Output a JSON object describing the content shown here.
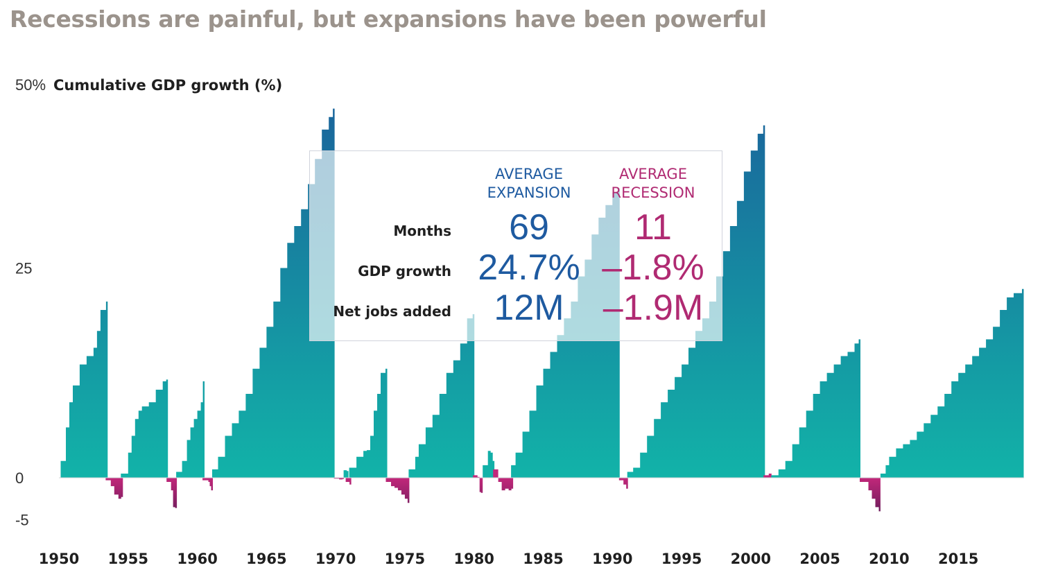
{
  "title": "Recessions are painful, but expansions have been powerful",
  "chart_data": {
    "type": "area",
    "ylabel": "Cumulative GDP growth (%)",
    "ylim": [
      -5,
      50
    ],
    "y_ticks": [
      "50%",
      "25",
      "0",
      "-5"
    ],
    "y_tick_values": [
      50,
      25,
      0,
      -5
    ],
    "x_ticks": [
      "1950",
      "1955",
      "1960",
      "1965",
      "1970",
      "1975",
      "1980",
      "1985",
      "1990",
      "1995",
      "2000",
      "2005",
      "2010",
      "2015"
    ],
    "xlim": [
      1950,
      2019.75
    ],
    "colors": {
      "expansion_top": "#1b5b9a",
      "expansion_bottom": "#12b3a8",
      "recession_top": "#c2277a",
      "recession_bottom": "#5a1b55"
    },
    "series": [
      {
        "kind": "expansion",
        "points": [
          [
            1950.25,
            2
          ],
          [
            1950.5,
            6
          ],
          [
            1950.75,
            9
          ],
          [
            1951.0,
            11
          ],
          [
            1951.5,
            13.5
          ],
          [
            1952.0,
            14.5
          ],
          [
            1952.5,
            15.5
          ],
          [
            1952.75,
            17.5
          ],
          [
            1953.0,
            20
          ],
          [
            1953.4,
            21
          ]
        ]
      },
      {
        "kind": "recession",
        "points": [
          [
            1953.5,
            -0.3
          ],
          [
            1953.75,
            -1
          ],
          [
            1954.0,
            -2
          ],
          [
            1954.3,
            -2.5
          ],
          [
            1954.5,
            -2.3
          ]
        ]
      },
      {
        "kind": "expansion",
        "points": [
          [
            1954.6,
            0.5
          ],
          [
            1955.0,
            3
          ],
          [
            1955.25,
            5
          ],
          [
            1955.5,
            7
          ],
          [
            1955.75,
            8
          ],
          [
            1956.0,
            8.5
          ],
          [
            1956.5,
            9
          ],
          [
            1957.0,
            10.5
          ],
          [
            1957.5,
            11.5
          ],
          [
            1957.75,
            11.7
          ]
        ]
      },
      {
        "kind": "recession",
        "points": [
          [
            1957.9,
            -0.5
          ],
          [
            1958.1,
            -1.5
          ],
          [
            1958.25,
            -3.5
          ],
          [
            1958.4,
            -3.6
          ]
        ]
      },
      {
        "kind": "expansion",
        "points": [
          [
            1958.6,
            0.7
          ],
          [
            1958.9,
            2
          ],
          [
            1959.25,
            4.5
          ],
          [
            1959.5,
            6
          ],
          [
            1959.75,
            7
          ],
          [
            1960.0,
            8
          ],
          [
            1960.25,
            9
          ],
          [
            1960.4,
            11.5
          ]
        ]
      },
      {
        "kind": "recession",
        "points": [
          [
            1960.5,
            -0.3
          ],
          [
            1960.8,
            -0.5
          ],
          [
            1960.9,
            -1
          ],
          [
            1961.0,
            -1.5
          ]
        ]
      },
      {
        "kind": "expansion",
        "points": [
          [
            1961.2,
            1
          ],
          [
            1961.5,
            2.5
          ],
          [
            1962.0,
            5
          ],
          [
            1962.5,
            6.5
          ],
          [
            1963.0,
            8
          ],
          [
            1963.5,
            10
          ],
          [
            1964.0,
            13
          ],
          [
            1964.5,
            15.5
          ],
          [
            1965.0,
            18
          ],
          [
            1965.5,
            21
          ],
          [
            1966.0,
            25
          ],
          [
            1966.5,
            28
          ],
          [
            1967.0,
            30
          ],
          [
            1967.5,
            32
          ],
          [
            1968.0,
            35
          ],
          [
            1968.5,
            38
          ],
          [
            1969.0,
            41.5
          ],
          [
            1969.5,
            43
          ],
          [
            1969.8,
            44
          ]
        ]
      },
      {
        "kind": "recession",
        "points": [
          [
            1970.0,
            -0.1
          ],
          [
            1970.25,
            -0.2
          ],
          [
            1970.5,
            -0.15
          ],
          [
            1970.6,
            0
          ]
        ]
      },
      {
        "kind": "expansion",
        "points": [
          [
            1970.7,
            0.9
          ],
          [
            1970.8,
            0.8
          ]
        ]
      },
      {
        "kind": "recession",
        "points": [
          [
            1970.85,
            -0.5
          ],
          [
            1971.0,
            -0.8
          ]
        ]
      },
      {
        "kind": "expansion",
        "points": [
          [
            1971.1,
            1.2
          ],
          [
            1971.5,
            2.5
          ],
          [
            1972.0,
            3.2
          ],
          [
            1972.25,
            3.3
          ],
          [
            1972.5,
            5
          ],
          [
            1972.75,
            8
          ],
          [
            1973.0,
            10
          ],
          [
            1973.25,
            12.5
          ],
          [
            1973.6,
            13
          ]
        ]
      },
      {
        "kind": "recession",
        "points": [
          [
            1973.75,
            -0.5
          ],
          [
            1974.0,
            -1
          ],
          [
            1974.25,
            -1.2
          ],
          [
            1974.5,
            -1.5
          ],
          [
            1974.75,
            -2
          ],
          [
            1975.0,
            -2.5
          ],
          [
            1975.2,
            -3
          ]
        ]
      },
      {
        "kind": "expansion",
        "points": [
          [
            1975.4,
            1
          ],
          [
            1975.75,
            2.5
          ],
          [
            1976.0,
            4
          ],
          [
            1976.5,
            6
          ],
          [
            1977.0,
            7.5
          ],
          [
            1977.5,
            10
          ],
          [
            1978.0,
            12.5
          ],
          [
            1978.5,
            14
          ],
          [
            1979.0,
            16
          ],
          [
            1979.5,
            19
          ],
          [
            1979.9,
            19.5
          ]
        ]
      },
      {
        "kind": "recession",
        "points": [
          [
            1980.05,
            0.3
          ],
          [
            1980.25,
            0.1
          ],
          [
            1980.4,
            -1.7
          ],
          [
            1980.5,
            -1.8
          ]
        ]
      },
      {
        "kind": "expansion",
        "points": [
          [
            1980.75,
            1.5
          ],
          [
            1981.0,
            3.2
          ],
          [
            1981.2,
            3
          ],
          [
            1981.35,
            2
          ]
        ]
      },
      {
        "kind": "recession",
        "points": [
          [
            1981.5,
            1
          ],
          [
            1981.75,
            -0.5
          ],
          [
            1982.0,
            -1.5
          ],
          [
            1982.25,
            -1.3
          ],
          [
            1982.5,
            -1.5
          ],
          [
            1982.7,
            -1.3
          ]
        ]
      },
      {
        "kind": "expansion",
        "points": [
          [
            1982.8,
            1.5
          ],
          [
            1983.0,
            3
          ],
          [
            1983.5,
            5.5
          ],
          [
            1984.0,
            8
          ],
          [
            1984.5,
            11
          ],
          [
            1985.0,
            13
          ],
          [
            1985.5,
            15
          ],
          [
            1986.0,
            17
          ],
          [
            1986.5,
            19
          ],
          [
            1987.0,
            21
          ],
          [
            1987.5,
            24
          ],
          [
            1988.0,
            26
          ],
          [
            1988.5,
            29
          ],
          [
            1989.0,
            31
          ],
          [
            1989.5,
            32.5
          ],
          [
            1990.0,
            34
          ],
          [
            1990.4,
            34.5
          ]
        ]
      },
      {
        "kind": "recession",
        "points": [
          [
            1990.6,
            -0.3
          ],
          [
            1990.8,
            -0.8
          ],
          [
            1991.0,
            -1.3
          ]
        ]
      },
      {
        "kind": "expansion",
        "points": [
          [
            1991.2,
            0.7
          ],
          [
            1991.5,
            1.2
          ],
          [
            1992.0,
            3
          ],
          [
            1992.5,
            5
          ],
          [
            1993.0,
            7
          ],
          [
            1993.5,
            9
          ],
          [
            1994.0,
            10.5
          ],
          [
            1994.5,
            12
          ],
          [
            1995.0,
            13.5
          ],
          [
            1995.5,
            15.5
          ],
          [
            1996.0,
            17.5
          ],
          [
            1996.5,
            19
          ],
          [
            1997.0,
            21
          ],
          [
            1997.5,
            24
          ],
          [
            1998.0,
            27
          ],
          [
            1998.5,
            30
          ],
          [
            1999.0,
            33
          ],
          [
            1999.5,
            36.5
          ],
          [
            2000.0,
            39
          ],
          [
            2000.5,
            41
          ],
          [
            2000.9,
            42
          ]
        ]
      },
      {
        "kind": "recession",
        "points": [
          [
            2001.05,
            0.3
          ],
          [
            2001.3,
            0.5
          ],
          [
            2001.5,
            0
          ]
        ]
      },
      {
        "kind": "expansion",
        "points": [
          [
            2001.6,
            0.3
          ],
          [
            2002.0,
            1
          ],
          [
            2002.5,
            2
          ],
          [
            2003.0,
            4
          ],
          [
            2003.5,
            6
          ],
          [
            2004.0,
            8
          ],
          [
            2004.5,
            10
          ],
          [
            2005.0,
            11.5
          ],
          [
            2005.5,
            12.5
          ],
          [
            2006.0,
            13.5
          ],
          [
            2006.5,
            14.5
          ],
          [
            2007.0,
            15
          ],
          [
            2007.5,
            16
          ],
          [
            2007.8,
            16.5
          ]
        ]
      },
      {
        "kind": "recession",
        "points": [
          [
            2008.0,
            -0.5
          ],
          [
            2008.25,
            -0.5
          ],
          [
            2008.5,
            -1.5
          ],
          [
            2008.75,
            -2.5
          ],
          [
            2009.0,
            -3.5
          ],
          [
            2009.25,
            -4
          ]
        ]
      },
      {
        "kind": "expansion",
        "points": [
          [
            2009.5,
            0.5
          ],
          [
            2009.75,
            1.5
          ],
          [
            2010.0,
            2.5
          ],
          [
            2010.5,
            3.5
          ],
          [
            2011.0,
            4
          ],
          [
            2011.5,
            4.5
          ],
          [
            2012.0,
            5.5
          ],
          [
            2012.5,
            6.5
          ],
          [
            2013.0,
            7.5
          ],
          [
            2013.5,
            8.5
          ],
          [
            2014.0,
            10
          ],
          [
            2014.5,
            11.5
          ],
          [
            2015.0,
            12.5
          ],
          [
            2015.5,
            13.5
          ],
          [
            2016.0,
            14.5
          ],
          [
            2016.5,
            15.5
          ],
          [
            2017.0,
            16.5
          ],
          [
            2017.5,
            18
          ],
          [
            2018.0,
            20
          ],
          [
            2018.5,
            21.5
          ],
          [
            2019.0,
            22
          ],
          [
            2019.6,
            22.5
          ]
        ]
      }
    ]
  },
  "stats": {
    "expansion_header": [
      "AVERAGE",
      "EXPANSION"
    ],
    "recession_header": [
      "AVERAGE",
      "RECESSION"
    ],
    "rows": [
      {
        "label": "Months",
        "expansion": "69",
        "recession": "11"
      },
      {
        "label": "GDP growth",
        "expansion": "24.7%",
        "recession": "–1.8%"
      },
      {
        "label": "Net jobs added",
        "expansion": "12M",
        "recession": "–1.9M"
      }
    ]
  }
}
